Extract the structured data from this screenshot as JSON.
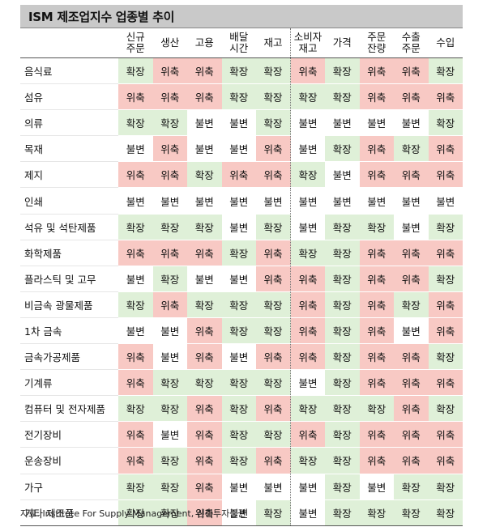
{
  "title": "ISM 제조업지수 업종별 추이",
  "columns": [
    [
      "신규",
      "주문"
    ],
    [
      "생산"
    ],
    [
      "고용"
    ],
    [
      "배달",
      "시간"
    ],
    [
      "재고"
    ],
    [
      "소비자",
      "재고"
    ],
    [
      "가격"
    ],
    [
      "주문",
      "잔량"
    ],
    [
      "수출",
      "주문"
    ],
    [
      "수입"
    ]
  ],
  "status_colors": {
    "확장": "#dff0d8",
    "위축": "#f8c9c4",
    "불변": "#ffffff"
  },
  "rows": [
    {
      "industry": "음식료",
      "values": [
        "확장",
        "위축",
        "위축",
        "확장",
        "확장",
        "위축",
        "확장",
        "위축",
        "위축",
        "확장"
      ]
    },
    {
      "industry": "섬유",
      "values": [
        "위축",
        "위축",
        "위축",
        "확장",
        "확장",
        "확장",
        "확장",
        "위축",
        "위축",
        "위축"
      ]
    },
    {
      "industry": "의류",
      "values": [
        "확장",
        "확장",
        "불변",
        "불변",
        "확장",
        "불변",
        "불변",
        "불변",
        "불변",
        "확장"
      ]
    },
    {
      "industry": "목재",
      "values": [
        "불변",
        "위축",
        "불변",
        "불변",
        "위축",
        "불변",
        "확장",
        "위축",
        "확장",
        "위축"
      ]
    },
    {
      "industry": "제지",
      "values": [
        "위축",
        "위축",
        "확장",
        "위축",
        "위축",
        "확장",
        "불변",
        "위축",
        "위축",
        "위축"
      ]
    },
    {
      "industry": "인쇄",
      "values": [
        "불변",
        "불변",
        "불변",
        "불변",
        "불변",
        "불변",
        "불변",
        "불변",
        "불변",
        "불변"
      ]
    },
    {
      "industry": "석유 및 석탄제품",
      "values": [
        "확장",
        "확장",
        "확장",
        "불변",
        "확장",
        "불변",
        "확장",
        "확장",
        "불변",
        "확장"
      ]
    },
    {
      "industry": "화학제품",
      "values": [
        "위축",
        "위축",
        "위축",
        "확장",
        "위축",
        "확장",
        "확장",
        "위축",
        "위축",
        "위축"
      ]
    },
    {
      "industry": "플라스틱 및 고무",
      "values": [
        "불변",
        "확장",
        "불변",
        "불변",
        "위축",
        "위축",
        "확장",
        "위축",
        "위축",
        "확장"
      ]
    },
    {
      "industry": "비금속 광물제품",
      "values": [
        "확장",
        "위축",
        "확장",
        "확장",
        "확장",
        "위축",
        "확장",
        "위축",
        "확장",
        "위축"
      ]
    },
    {
      "industry": "1차 금속",
      "values": [
        "불변",
        "불변",
        "위축",
        "확장",
        "확장",
        "위축",
        "확장",
        "위축",
        "불변",
        "위축"
      ]
    },
    {
      "industry": "금속가공제품",
      "values": [
        "위축",
        "불변",
        "위축",
        "불변",
        "위축",
        "위축",
        "확장",
        "위축",
        "위축",
        "확장"
      ]
    },
    {
      "industry": "기계류",
      "values": [
        "위축",
        "확장",
        "확장",
        "확장",
        "확장",
        "불변",
        "확장",
        "위축",
        "위축",
        "위축"
      ]
    },
    {
      "industry": "컴퓨터 및 전자제품",
      "values": [
        "확장",
        "확장",
        "위축",
        "확장",
        "위축",
        "확장",
        "확장",
        "확장",
        "위축",
        "확장"
      ]
    },
    {
      "industry": "전기장비",
      "values": [
        "위축",
        "불변",
        "위축",
        "확장",
        "확장",
        "위축",
        "확장",
        "위축",
        "위축",
        "위축"
      ]
    },
    {
      "industry": "운송장비",
      "values": [
        "위축",
        "확장",
        "위축",
        "확장",
        "위축",
        "확장",
        "확장",
        "위축",
        "위축",
        "위축"
      ]
    },
    {
      "industry": "가구",
      "values": [
        "확장",
        "확장",
        "위축",
        "불변",
        "불변",
        "불변",
        "확장",
        "불변",
        "확장",
        "확장"
      ]
    },
    {
      "industry": "기타 제조품",
      "values": [
        "확장",
        "확장",
        "위축",
        "불변",
        "확장",
        "불변",
        "확장",
        "확장",
        "확장",
        "확장"
      ]
    }
  ],
  "source": "자료: Institute For Supply Management, 신한투자증권"
}
